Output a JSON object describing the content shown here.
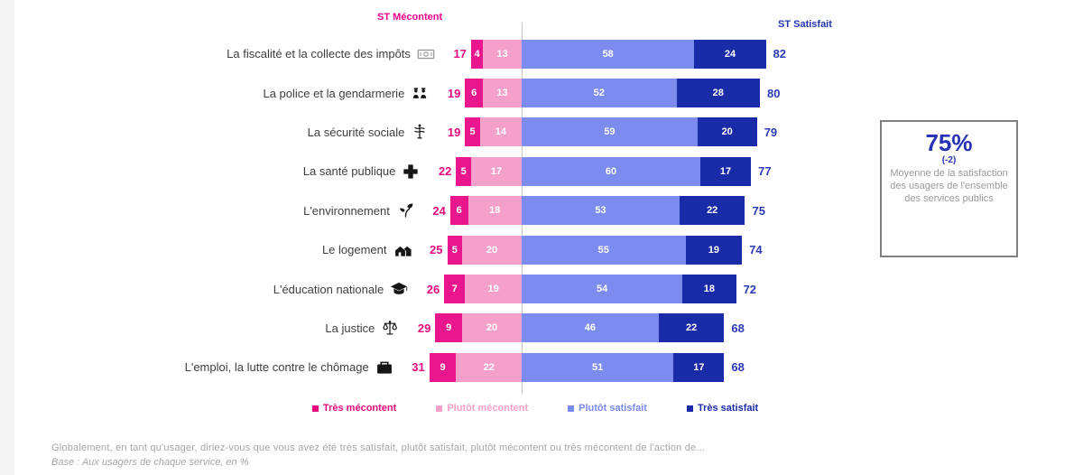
{
  "header": {
    "left_label": "ST Mécontent",
    "right_label": "ST Satisfait"
  },
  "colors": {
    "tres_mecontent": "#E9168E",
    "plutot_mecontent": "#F5A0CA",
    "plutot_satisfait": "#7B8BEE",
    "tres_satisfait": "#1A2BA8",
    "st_mecontent_text": "#E5097F",
    "st_satisfait_text": "#2B3AB5",
    "header_left_text": "#EC008C",
    "header_right_text": "#2533B0"
  },
  "chart_data": {
    "type": "bar",
    "subtype": "diverging-stacked-horizontal",
    "unit": "%",
    "categories": [
      "La fiscalité et la collecte des impôts",
      "La police et la gendarmerie",
      "La sécurité sociale",
      "La santé publique",
      "L'environnement",
      "Le logement",
      "L'éducation nationale",
      "La justice",
      "L'emploi, la lutte contre le chômage"
    ],
    "series": [
      {
        "name": "Très mécontent",
        "values": [
          4,
          6,
          5,
          5,
          6,
          5,
          7,
          9,
          9
        ]
      },
      {
        "name": "Plutôt mécontent",
        "values": [
          13,
          13,
          14,
          17,
          18,
          20,
          19,
          20,
          22
        ]
      },
      {
        "name": "Plutôt satisfait",
        "values": [
          58,
          52,
          59,
          60,
          53,
          55,
          54,
          46,
          51
        ]
      },
      {
        "name": "Très satisfait",
        "values": [
          24,
          28,
          20,
          17,
          22,
          19,
          18,
          22,
          17
        ]
      }
    ],
    "st_mecontent_totals": [
      17,
      19,
      19,
      22,
      24,
      25,
      26,
      29,
      31
    ],
    "st_satisfait_totals": [
      82,
      80,
      79,
      77,
      75,
      74,
      72,
      68,
      68
    ],
    "legend_position": "bottom",
    "axis_zero_divider": true
  },
  "rows": [
    {
      "label": "La fiscalité et la collecte des impôts",
      "icon": "banknote-icon",
      "st_mecontent": 17,
      "tres_mecontent": 4,
      "plutot_mecontent": 13,
      "plutot_satisfait": 58,
      "tres_satisfait": 24,
      "st_satisfait": 82
    },
    {
      "label": "La police et la gendarmerie",
      "icon": "police-icon",
      "st_mecontent": 19,
      "tres_mecontent": 6,
      "plutot_mecontent": 13,
      "plutot_satisfait": 52,
      "tres_satisfait": 28,
      "st_satisfait": 80
    },
    {
      "label": "La sécurité sociale",
      "icon": "caduceus-icon",
      "st_mecontent": 19,
      "tres_mecontent": 5,
      "plutot_mecontent": 14,
      "plutot_satisfait": 59,
      "tres_satisfait": 20,
      "st_satisfait": 79
    },
    {
      "label": "La santé publique",
      "icon": "medical-cross-icon",
      "st_mecontent": 22,
      "tres_mecontent": 5,
      "plutot_mecontent": 17,
      "plutot_satisfait": 60,
      "tres_satisfait": 17,
      "st_satisfait": 77
    },
    {
      "label": "L'environnement",
      "icon": "sprout-icon",
      "st_mecontent": 24,
      "tres_mecontent": 6,
      "plutot_mecontent": 18,
      "plutot_satisfait": 53,
      "tres_satisfait": 22,
      "st_satisfait": 75
    },
    {
      "label": "Le logement",
      "icon": "houses-icon",
      "st_mecontent": 25,
      "tres_mecontent": 5,
      "plutot_mecontent": 20,
      "plutot_satisfait": 55,
      "tres_satisfait": 19,
      "st_satisfait": 74
    },
    {
      "label": "L'éducation nationale",
      "icon": "graduation-cap-icon",
      "st_mecontent": 26,
      "tres_mecontent": 7,
      "plutot_mecontent": 19,
      "plutot_satisfait": 54,
      "tres_satisfait": 18,
      "st_satisfait": 72
    },
    {
      "label": "La justice",
      "icon": "scales-icon",
      "st_mecontent": 29,
      "tres_mecontent": 9,
      "plutot_mecontent": 20,
      "plutot_satisfait": 46,
      "tres_satisfait": 22,
      "st_satisfait": 68
    },
    {
      "label": "L'emploi, la lutte contre le chômage",
      "icon": "briefcase-icon",
      "st_mecontent": 31,
      "tres_mecontent": 9,
      "plutot_mecontent": 22,
      "plutot_satisfait": 51,
      "tres_satisfait": 17,
      "st_satisfait": 68
    }
  ],
  "legend": {
    "items": [
      {
        "label": "Très mécontent",
        "color": "#E5097F"
      },
      {
        "label": "Plutôt mécontent",
        "color": "#F5A0CA"
      },
      {
        "label": "Plutôt satisfait",
        "color": "#7B8BEE"
      },
      {
        "label": "Très satisfait",
        "color": "#1A2BA8"
      }
    ]
  },
  "summary_box": {
    "value": "75%",
    "delta": "(-2)",
    "text": "Moyenne de la satisfaction des usagers de l'ensemble des services publics"
  },
  "footer": {
    "question": "Globalement, en tant qu'usager, diriez-vous que vous avez été très satisfait, plutôt satisfait, plutôt mécontent ou très mécontent de l'action de...",
    "base": "Base : Aux usagers de chaque service, en %"
  }
}
